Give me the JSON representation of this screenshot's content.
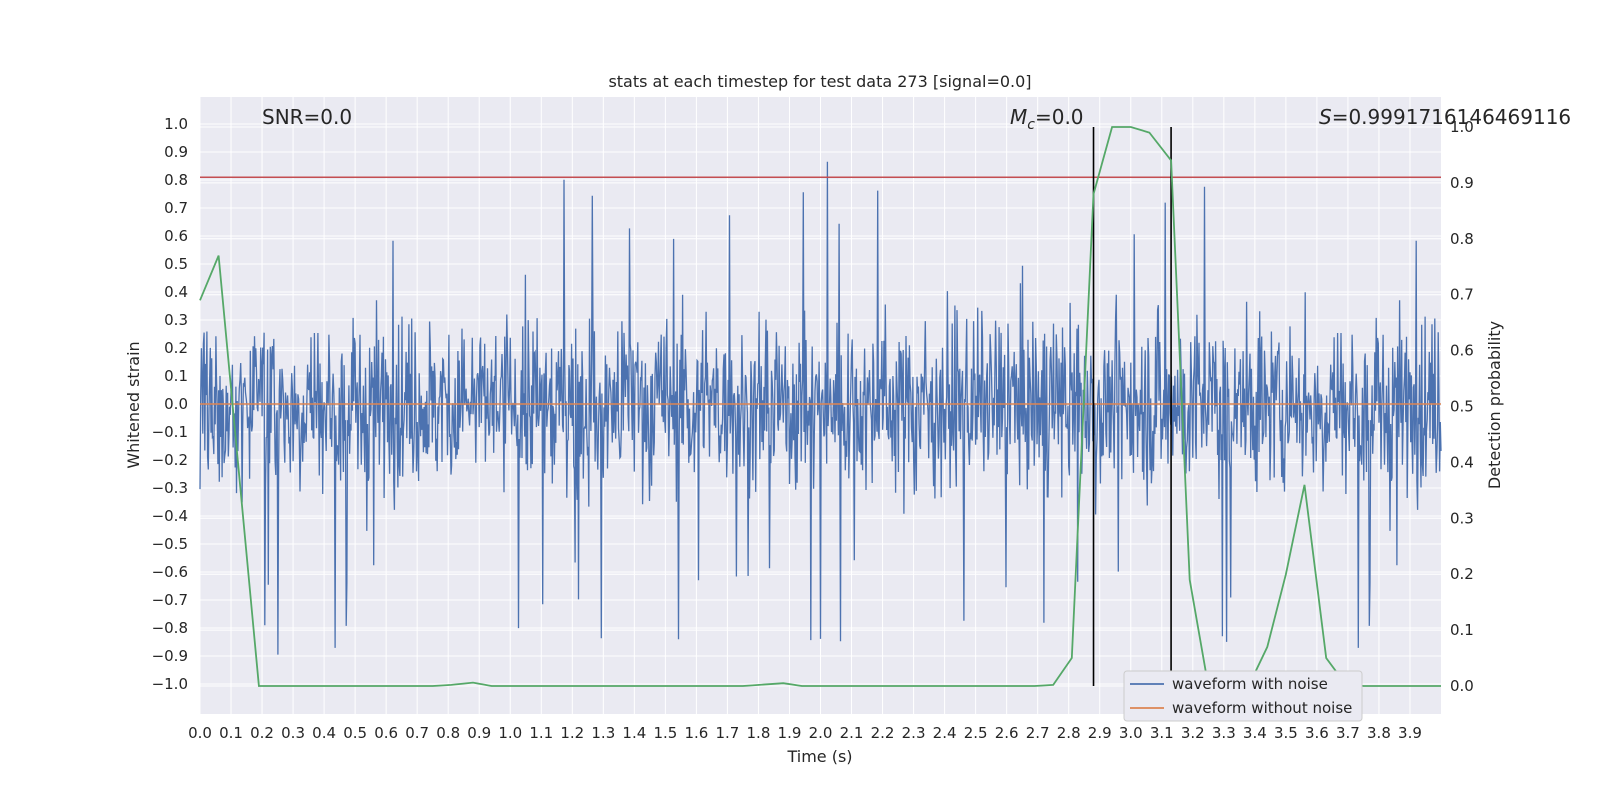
{
  "chart_data": {
    "type": "line",
    "title": "stats at each timestep for test data 273 [signal=0.0]",
    "xlabel": "Time (s)",
    "ylabel": "Whitened strain",
    "ylabel_right": "Detection probability",
    "xlim": [
      0.0,
      4.0
    ],
    "ylim": [
      -1.05,
      1.1
    ],
    "ylim_right": [
      -0.05,
      1.0
    ],
    "x_ticks": [
      "0.0",
      "0.1",
      "0.2",
      "0.3",
      "0.4",
      "0.5",
      "0.6",
      "0.7",
      "0.8",
      "0.9",
      "1.0",
      "1.1",
      "1.2",
      "1.3",
      "1.4",
      "1.5",
      "1.6",
      "1.7",
      "1.8",
      "1.9",
      "2.0",
      "2.1",
      "2.2",
      "2.3",
      "2.4",
      "2.5",
      "2.6",
      "2.7",
      "2.8",
      "2.9",
      "3.0",
      "3.1",
      "3.2",
      "3.3",
      "3.4",
      "3.5",
      "3.6",
      "3.7",
      "3.8",
      "3.9"
    ],
    "y_ticks": [
      "1.0",
      "0.9",
      "0.8",
      "0.7",
      "0.6",
      "0.5",
      "0.4",
      "0.3",
      "0.2",
      "0.1",
      "0.0",
      "−0.1",
      "−0.2",
      "−0.3",
      "−0.4",
      "−0.5",
      "−0.6",
      "−0.7",
      "−0.8",
      "−0.9",
      "−1.0"
    ],
    "y_ticks_right": [
      "1.0",
      "0.9",
      "0.8",
      "0.7",
      "0.6",
      "0.5",
      "0.4",
      "0.3",
      "0.2",
      "0.1",
      "0.0"
    ],
    "grid": true,
    "legend_position": "lower-right",
    "annotations": {
      "snr": "SNR=0.0",
      "mc_symbol": "M",
      "mc_sub": "c",
      "mc_value": "=0.0",
      "s_symbol": "S",
      "s_value": "=0.9991716146469116"
    },
    "series": [
      {
        "name": "waveform with noise",
        "axis": "left",
        "color": "#4c72b0",
        "kind": "noise",
        "amplitude_typical": 0.35,
        "peak_max": 1.0,
        "peak_min": -0.91
      },
      {
        "name": "waveform without noise",
        "axis": "left",
        "color": "#dd8452",
        "kind": "flat",
        "y": 0.0
      },
      {
        "axis": "right",
        "color": "#55a868",
        "x": [
          0.0,
          0.06,
          0.19,
          0.25,
          0.31,
          0.38,
          0.44,
          0.5,
          0.56,
          0.63,
          0.69,
          0.75,
          0.81,
          0.88,
          0.94,
          1.0,
          1.25,
          1.5,
          1.75,
          1.88,
          1.94,
          2.0,
          2.25,
          2.5,
          2.69,
          2.75,
          2.81,
          2.88,
          2.94,
          3.0,
          3.06,
          3.13,
          3.19,
          3.25,
          3.31,
          3.38,
          3.44,
          3.5,
          3.56,
          3.63,
          3.69,
          3.75,
          3.81,
          3.88,
          3.94,
          4.0
        ],
        "y": [
          0.69,
          0.77,
          0.0,
          0.0,
          0.0,
          0.0,
          0.0,
          0.0,
          0.0,
          0.0,
          0.0,
          0.0,
          0.002,
          0.006,
          0.0,
          0.0,
          0.0,
          0.0,
          0.0,
          0.005,
          0.0,
          0.0,
          0.0,
          0.0,
          0.0,
          0.002,
          0.05,
          0.88,
          1.0,
          1.0,
          0.99,
          0.94,
          0.19,
          0.0,
          -0.03,
          0.0,
          0.07,
          0.2,
          0.36,
          0.05,
          0.005,
          0.0,
          0.0,
          0.0,
          0.0,
          0.0
        ]
      }
    ],
    "threshold_line": {
      "axis": "left",
      "y": 0.81,
      "color": "#c44e52"
    },
    "vertical_lines": {
      "x": [
        2.88,
        3.13
      ],
      "right_y": [
        0.0,
        1.0
      ],
      "color": "#000000"
    }
  }
}
